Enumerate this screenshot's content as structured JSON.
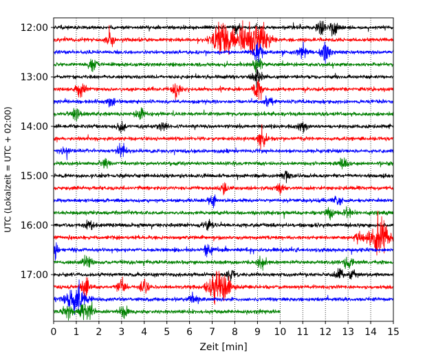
{
  "chart_data": {
    "type": "line",
    "title": "",
    "xlabel": "Zeit  [min]",
    "ylabel": "UTC (Lokalzeit = UTC + 02:00)",
    "xlim": [
      0,
      15
    ],
    "x_ticks": [
      0,
      1,
      2,
      3,
      4,
      5,
      6,
      7,
      8,
      9,
      10,
      11,
      12,
      13,
      14,
      15
    ],
    "x_tick_labels": [
      "0",
      "1",
      "2",
      "3",
      "4",
      "5",
      "6",
      "7",
      "8",
      "9",
      "10",
      "11",
      "12",
      "13",
      "14",
      "15"
    ],
    "y_tick_labels": [
      "12:00",
      "13:00",
      "14:00",
      "15:00",
      "16:00",
      "17:00"
    ],
    "grid": "vertical dotted lines at each minute",
    "line_interval_minutes": 15,
    "trace_colors": [
      "#000000",
      "#ff0000",
      "#0000ff",
      "#008000"
    ],
    "traces": [
      {
        "start": "11:45",
        "color": "#000000",
        "end_min": 15,
        "events": [
          {
            "t": 12.4,
            "amp": 1.6
          },
          {
            "t": 11.8,
            "amp": 1.4
          },
          {
            "t": 8.0,
            "amp": 1.1
          }
        ]
      },
      {
        "start": "12:00",
        "color": "#ff0000",
        "end_min": 15,
        "events": [
          {
            "t": 7.5,
            "amp": 4.0
          },
          {
            "t": 9.0,
            "amp": 4.5
          },
          {
            "t": 8.3,
            "amp": 2.5
          },
          {
            "t": 2.5,
            "amp": 1.1
          }
        ]
      },
      {
        "start": "12:15",
        "color": "#0000ff",
        "end_min": 15,
        "events": [
          {
            "t": 12.0,
            "amp": 1.8
          },
          {
            "t": 11.0,
            "amp": 1.4
          },
          {
            "t": 9.0,
            "amp": 2.0
          }
        ]
      },
      {
        "start": "12:30",
        "color": "#008000",
        "end_min": 15,
        "events": [
          {
            "t": 1.7,
            "amp": 1.1
          },
          {
            "t": 9.0,
            "amp": 1.8
          }
        ]
      },
      {
        "start": "12:45",
        "color": "#000000",
        "end_min": 15,
        "events": [
          {
            "t": 9.0,
            "amp": 2.0
          }
        ]
      },
      {
        "start": "13:00",
        "color": "#ff0000",
        "end_min": 15,
        "events": [
          {
            "t": 1.2,
            "amp": 1.3
          },
          {
            "t": 5.4,
            "amp": 1.4
          },
          {
            "t": 9.0,
            "amp": 2.2
          }
        ]
      },
      {
        "start": "13:15",
        "color": "#0000ff",
        "end_min": 15,
        "events": [
          {
            "t": 2.5,
            "amp": 1.0
          },
          {
            "t": 9.5,
            "amp": 0.9
          }
        ]
      },
      {
        "start": "13:30",
        "color": "#008000",
        "end_min": 15,
        "events": [
          {
            "t": 1.0,
            "amp": 1.1
          },
          {
            "t": 3.8,
            "amp": 0.9
          }
        ]
      },
      {
        "start": "13:45",
        "color": "#000000",
        "end_min": 15,
        "events": [
          {
            "t": 3.0,
            "amp": 1.0
          },
          {
            "t": 4.8,
            "amp": 0.9
          },
          {
            "t": 11.0,
            "amp": 0.9
          }
        ]
      },
      {
        "start": "14:00",
        "color": "#ff0000",
        "end_min": 15,
        "events": [
          {
            "t": 9.2,
            "amp": 1.6
          }
        ]
      },
      {
        "start": "14:15",
        "color": "#0000ff",
        "end_min": 15,
        "events": [
          {
            "t": 0.5,
            "amp": 1.0
          },
          {
            "t": 3.0,
            "amp": 1.2
          }
        ]
      },
      {
        "start": "14:30",
        "color": "#008000",
        "end_min": 15,
        "events": [
          {
            "t": 2.3,
            "amp": 0.9
          },
          {
            "t": 12.8,
            "amp": 1.0
          }
        ]
      },
      {
        "start": "14:45",
        "color": "#000000",
        "end_min": 15,
        "events": [
          {
            "t": 10.3,
            "amp": 0.8
          }
        ]
      },
      {
        "start": "15:00",
        "color": "#ff0000",
        "end_min": 15,
        "events": [
          {
            "t": 7.5,
            "amp": 0.9
          },
          {
            "t": 10.0,
            "amp": 0.9
          }
        ]
      },
      {
        "start": "15:15",
        "color": "#0000ff",
        "end_min": 15,
        "events": [
          {
            "t": 7.0,
            "amp": 1.0
          },
          {
            "t": 12.5,
            "amp": 0.8
          }
        ]
      },
      {
        "start": "15:30",
        "color": "#008000",
        "end_min": 15,
        "events": [
          {
            "t": 12.2,
            "amp": 1.0
          },
          {
            "t": 13.0,
            "amp": 1.1
          }
        ]
      },
      {
        "start": "15:45",
        "color": "#000000",
        "end_min": 15,
        "events": [
          {
            "t": 1.6,
            "amp": 1.0
          },
          {
            "t": 6.8,
            "amp": 1.0
          }
        ]
      },
      {
        "start": "16:00",
        "color": "#ff0000",
        "end_min": 15,
        "events": [
          {
            "t": 14.4,
            "amp": 3.0
          },
          {
            "t": 13.5,
            "amp": 1.0
          }
        ]
      },
      {
        "start": "16:15",
        "color": "#0000ff",
        "end_min": 15,
        "events": [
          {
            "t": 6.8,
            "amp": 1.0
          },
          {
            "t": 0.1,
            "amp": 1.2
          }
        ]
      },
      {
        "start": "16:30",
        "color": "#008000",
        "end_min": 15,
        "events": [
          {
            "t": 1.5,
            "amp": 1.2
          },
          {
            "t": 9.2,
            "amp": 1.0
          },
          {
            "t": 13.0,
            "amp": 1.1
          }
        ]
      },
      {
        "start": "16:45",
        "color": "#000000",
        "end_min": 15,
        "events": [
          {
            "t": 7.8,
            "amp": 1.0
          },
          {
            "t": 12.6,
            "amp": 1.1
          },
          {
            "t": 13.2,
            "amp": 1.0
          }
        ]
      },
      {
        "start": "17:00",
        "color": "#ff0000",
        "end_min": 15,
        "events": [
          {
            "t": 1.4,
            "amp": 2.2
          },
          {
            "t": 4.0,
            "amp": 1.4
          },
          {
            "t": 7.3,
            "amp": 3.5
          },
          {
            "t": 3.0,
            "amp": 1.2
          }
        ]
      },
      {
        "start": "17:15",
        "color": "#0000ff",
        "end_min": 15,
        "events": [
          {
            "t": 1.0,
            "amp": 2.8
          },
          {
            "t": 6.2,
            "amp": 1.2
          }
        ]
      },
      {
        "start": "17:30",
        "color": "#008000",
        "end_min": 10,
        "events": [
          {
            "t": 0.6,
            "amp": 1.3
          },
          {
            "t": 1.3,
            "amp": 1.4
          },
          {
            "t": 1.6,
            "amp": 1.4
          },
          {
            "t": 3.1,
            "amp": 1.0
          }
        ]
      }
    ]
  }
}
